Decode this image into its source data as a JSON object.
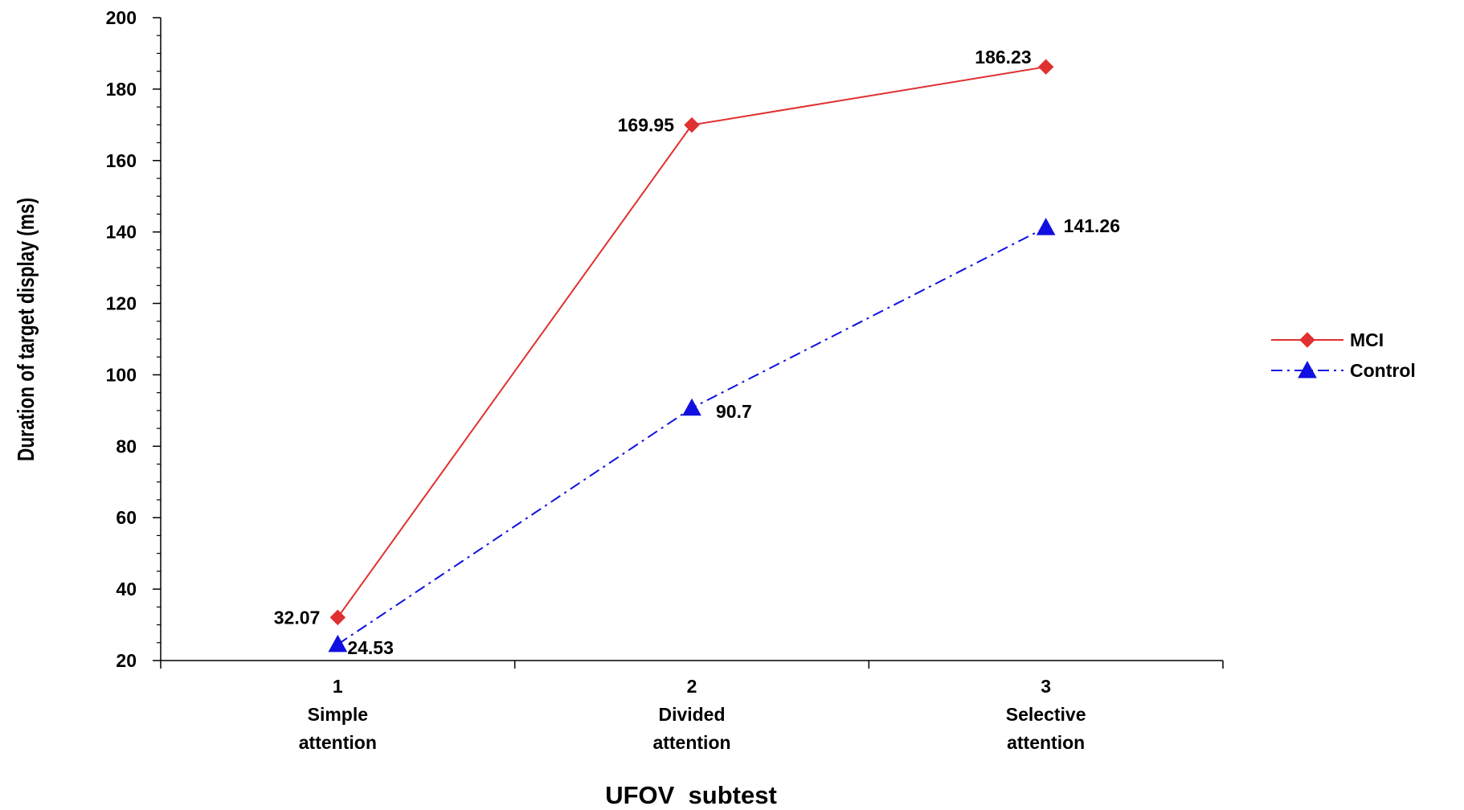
{
  "chart_data": {
    "type": "line",
    "title": "",
    "xlabel": "UFOV  subtest",
    "ylabel": "Duration of target display (ms)",
    "ylim": [
      20,
      200
    ],
    "yticks": [
      20,
      40,
      60,
      80,
      100,
      120,
      140,
      160,
      180,
      200
    ],
    "categories": [
      {
        "number": "1",
        "line1": "Simple",
        "line2": "attention"
      },
      {
        "number": "2",
        "line1": "Divided",
        "line2": "attention"
      },
      {
        "number": "3",
        "line1": "Selective",
        "line2": "attention"
      }
    ],
    "series": [
      {
        "name": "MCI",
        "values": [
          32.07,
          169.95,
          186.23
        ],
        "labels": [
          "32.07",
          "169.95",
          "186.23"
        ],
        "color": "#e03030",
        "marker": "diamond",
        "dash": "solid"
      },
      {
        "name": "Control",
        "values": [
          24.53,
          90.7,
          141.26
        ],
        "labels": [
          "24.53",
          "90.7",
          "141.26"
        ],
        "color": "#1010e0",
        "marker": "triangle",
        "dash": "dash-dot"
      }
    ],
    "legend": "right",
    "grid": false
  }
}
